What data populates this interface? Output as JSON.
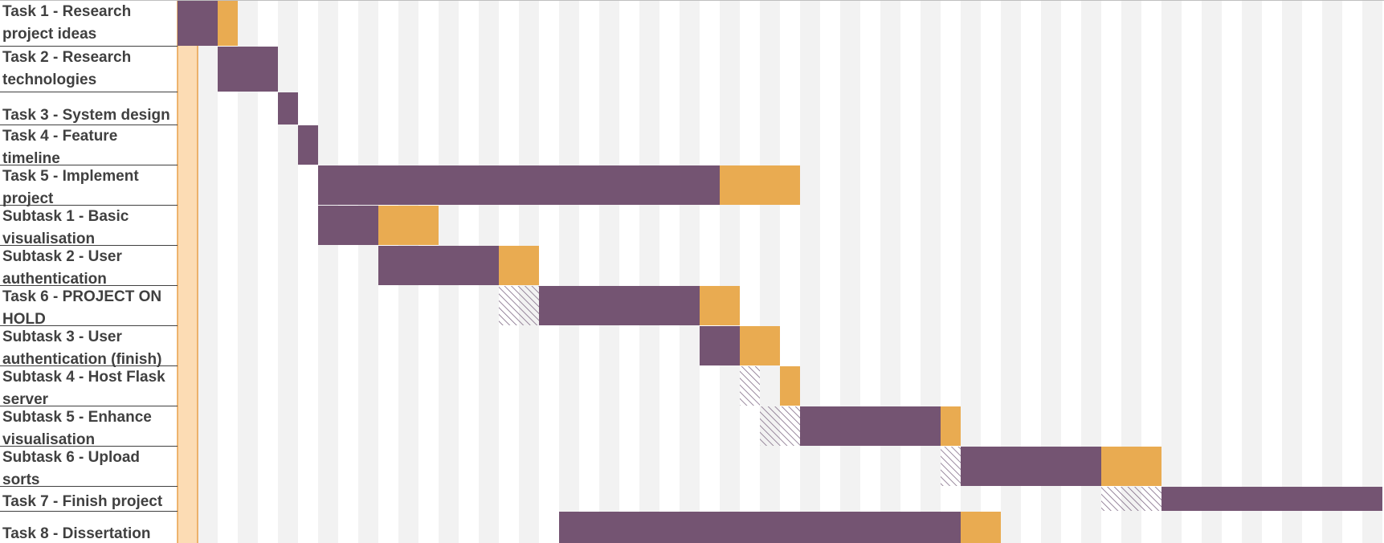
{
  "chart_data": {
    "type": "gantt",
    "title": "",
    "x_unit": "period",
    "x_range": [
      0,
      60
    ],
    "tasks": [
      {
        "label": [
          "Task 1 - Research",
          "project ideas"
        ],
        "plan_start": 0,
        "plan_duration": 2,
        "actual_start": 0,
        "actual_duration": 3
      },
      {
        "label": [
          "Task 2 - Research",
          "technologies"
        ],
        "plan_start": 2,
        "plan_duration": 3,
        "actual_start": 2,
        "actual_duration": 3
      },
      {
        "label": [
          "Task 3 - System design"
        ],
        "plan_start": 5,
        "plan_duration": 1,
        "actual_start": 5,
        "actual_duration": 1
      },
      {
        "label": [
          "Task 4 - Feature",
          "timeline"
        ],
        "plan_start": 6,
        "plan_duration": 1,
        "actual_start": 6,
        "actual_duration": 1
      },
      {
        "label": [
          "Task 5 - Implement",
          "project"
        ],
        "plan_start": 7,
        "plan_duration": 20,
        "actual_start": 7,
        "actual_duration": 24
      },
      {
        "label": [
          "Subtask 1 - Basic",
          "visualisation"
        ],
        "plan_start": 7,
        "plan_duration": 3,
        "actual_start": 7,
        "actual_duration": 6
      },
      {
        "label": [
          "Subtask 2 - User",
          "authentication"
        ],
        "plan_start": 10,
        "plan_duration": 6,
        "actual_start": 10,
        "actual_duration": 8
      },
      {
        "label": [
          "Task 6 - PROJECT ON",
          "HOLD"
        ],
        "plan_start": 16,
        "plan_duration": 10,
        "actual_start": 18,
        "actual_duration": 10
      },
      {
        "label": [
          "Subtask 3 - User",
          "authentication (finish)"
        ],
        "plan_start": 26,
        "plan_duration": 2,
        "actual_start": 26,
        "actual_duration": 4
      },
      {
        "label": [
          "Subtask 4 - Host Flask",
          "server"
        ],
        "plan_start": 28,
        "plan_duration": 1,
        "actual_start": 30,
        "actual_duration": 1
      },
      {
        "label": [
          "Subtask 5 - Enhance",
          "visualisation"
        ],
        "plan_start": 29,
        "plan_duration": 9,
        "actual_start": 31,
        "actual_duration": 8
      },
      {
        "label": [
          "Subtask 6 - Upload",
          "sorts"
        ],
        "plan_start": 38,
        "plan_duration": 8,
        "actual_start": 39,
        "actual_duration": 10
      },
      {
        "label": [
          "Task 7 - Finish project"
        ],
        "plan_start": 46,
        "plan_duration": 14,
        "actual_start": 49,
        "actual_duration": 11
      },
      {
        "label": [
          "Task 8 - Dissertation"
        ],
        "plan_start": 19,
        "plan_duration": 20,
        "actual_start": 19,
        "actual_duration": 22
      }
    ],
    "current_period": 0,
    "colors": {
      "plan": "#745472",
      "actual_beyond": "#e9ab51",
      "current_period": "#fcdcb4",
      "current_line": "#e8a04a",
      "stripe_light": "#f2f2f2",
      "stripe_dark": "#ffffff",
      "hatch": "#7a6480",
      "row_line": "#404040",
      "label": "#404040"
    }
  }
}
